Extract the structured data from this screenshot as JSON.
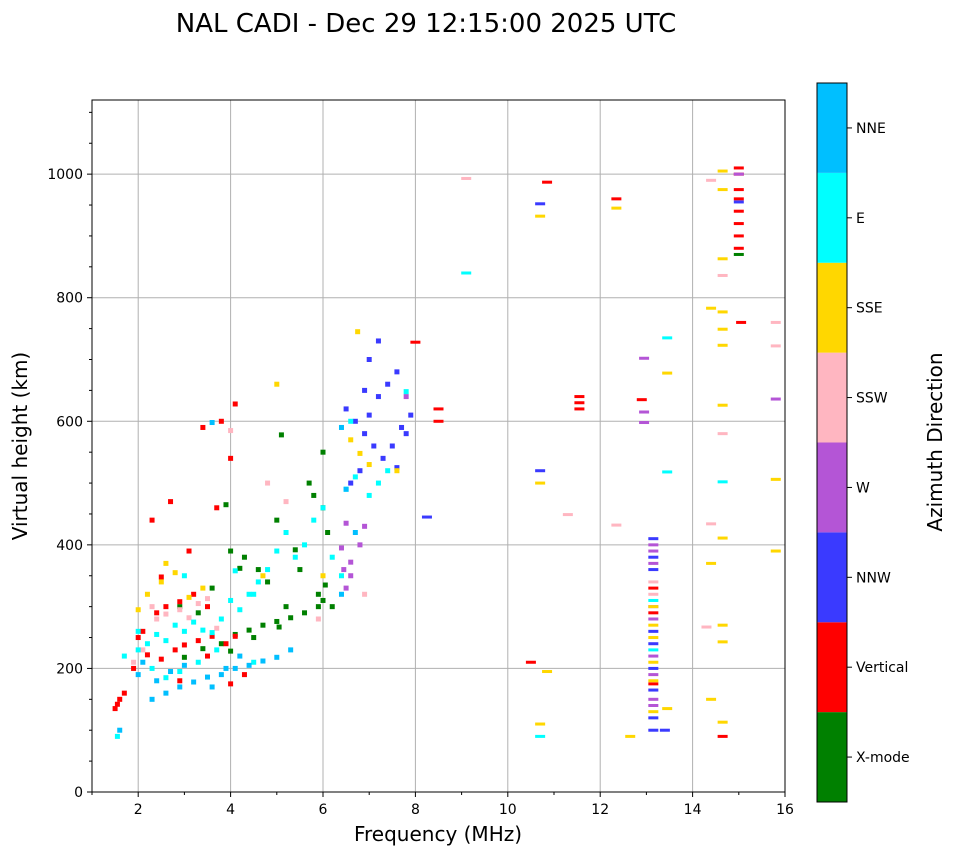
{
  "chart_data": {
    "type": "scatter",
    "title": "NAL CADI - Dec 29 12:15:00 2025 UTC",
    "xlabel": "Frequency (MHz)",
    "ylabel": "Virtual height (km)",
    "xlim": [
      1,
      16
    ],
    "ylim": [
      0,
      1120
    ],
    "xticks": [
      2,
      4,
      6,
      8,
      10,
      12,
      14,
      16
    ],
    "yticks": [
      0,
      200,
      400,
      600,
      800,
      1000
    ],
    "grid": true,
    "colorbar": {
      "label": "Azimuth Direction",
      "position": "right",
      "categories": [
        "X-mode",
        "Vertical",
        "NNW",
        "W",
        "SSW",
        "SSE",
        "E",
        "NNE"
      ],
      "colors": [
        "#008000",
        "#ff0000",
        "#3a3aff",
        "#b455d6",
        "#ffb6c1",
        "#ffd700",
        "#00ffff",
        "#00bfff"
      ]
    },
    "series": [
      {
        "name": "X-mode",
        "points": [
          [
            3.0,
            218
          ],
          [
            3.4,
            232
          ],
          [
            3.8,
            240
          ],
          [
            4.1,
            255
          ],
          [
            4.4,
            262
          ],
          [
            4.7,
            270
          ],
          [
            5.0,
            276
          ],
          [
            5.3,
            282
          ],
          [
            5.6,
            290
          ],
          [
            5.9,
            300
          ],
          [
            6.0,
            310
          ],
          [
            4.0,
            228
          ],
          [
            4.5,
            250
          ],
          [
            5.2,
            300
          ],
          [
            4.8,
            340
          ],
          [
            5.5,
            360
          ],
          [
            6.1,
            420
          ],
          [
            5.8,
            480
          ],
          [
            5.0,
            440
          ],
          [
            4.3,
            380
          ],
          [
            3.6,
            330
          ],
          [
            4.0,
            390
          ],
          [
            3.9,
            465
          ],
          [
            5.7,
            500
          ],
          [
            6.0,
            550
          ],
          [
            5.9,
            320
          ],
          [
            6.2,
            300
          ],
          [
            5.1,
            578
          ],
          [
            4.6,
            360
          ],
          [
            5.4,
            392
          ],
          [
            6.05,
            335
          ],
          [
            5.05,
            267
          ],
          [
            4.2,
            362
          ],
          [
            3.3,
            290
          ],
          [
            2.9,
            300
          ],
          [
            6.0,
            460
          ],
          [
            15.0,
            870
          ]
        ]
      },
      {
        "name": "Vertical",
        "points": [
          [
            1.5,
            135
          ],
          [
            1.55,
            142
          ],
          [
            1.6,
            150
          ],
          [
            1.7,
            160
          ],
          [
            1.9,
            200
          ],
          [
            2.2,
            222
          ],
          [
            2.5,
            215
          ],
          [
            2.8,
            230
          ],
          [
            3.0,
            238
          ],
          [
            3.3,
            245
          ],
          [
            3.6,
            252
          ],
          [
            3.9,
            240
          ],
          [
            4.1,
            252
          ],
          [
            2.6,
            300
          ],
          [
            2.9,
            308
          ],
          [
            3.2,
            320
          ],
          [
            3.5,
            300
          ],
          [
            2.3,
            440
          ],
          [
            2.1,
            260
          ],
          [
            2.4,
            290
          ],
          [
            3.8,
            600
          ],
          [
            4.1,
            628
          ],
          [
            3.4,
            590
          ],
          [
            2.7,
            470
          ],
          [
            3.1,
            390
          ],
          [
            3.7,
            460
          ],
          [
            4.0,
            540
          ],
          [
            4.3,
            190
          ],
          [
            4.0,
            175
          ],
          [
            2.0,
            250
          ],
          [
            2.9,
            180
          ],
          [
            2.5,
            348
          ],
          [
            3.5,
            220
          ],
          [
            8.5,
            600
          ],
          [
            8.5,
            620
          ],
          [
            10.5,
            210
          ],
          [
            10.85,
            987
          ],
          [
            11.55,
            620
          ],
          [
            11.55,
            630
          ],
          [
            11.55,
            640
          ],
          [
            12.35,
            960
          ],
          [
            12.9,
            635
          ],
          [
            13.15,
            330
          ],
          [
            13.15,
            290
          ],
          [
            13.15,
            175
          ],
          [
            14.65,
            90
          ],
          [
            15.0,
            1010
          ],
          [
            15.0,
            1000
          ],
          [
            15.0,
            975
          ],
          [
            15.0,
            960
          ],
          [
            15.0,
            940
          ],
          [
            15.0,
            920
          ],
          [
            15.0,
            900
          ],
          [
            15.0,
            880
          ],
          [
            15.05,
            760
          ],
          [
            8.0,
            728
          ]
        ]
      },
      {
        "name": "NNW",
        "points": [
          [
            6.5,
            620
          ],
          [
            6.7,
            600
          ],
          [
            6.9,
            580
          ],
          [
            7.1,
            560
          ],
          [
            7.3,
            540
          ],
          [
            7.5,
            560
          ],
          [
            7.7,
            590
          ],
          [
            7.9,
            610
          ],
          [
            6.6,
            500
          ],
          [
            6.8,
            520
          ],
          [
            7.0,
            610
          ],
          [
            7.2,
            640
          ],
          [
            7.4,
            660
          ],
          [
            7.6,
            680
          ],
          [
            7.0,
            700
          ],
          [
            7.2,
            730
          ],
          [
            6.9,
            650
          ],
          [
            8.25,
            445
          ],
          [
            10.7,
            520
          ],
          [
            10.7,
            952
          ],
          [
            13.15,
            410
          ],
          [
            13.15,
            380
          ],
          [
            13.15,
            360
          ],
          [
            13.15,
            260
          ],
          [
            13.15,
            240
          ],
          [
            13.15,
            200
          ],
          [
            13.15,
            165
          ],
          [
            13.15,
            120
          ],
          [
            13.15,
            100
          ],
          [
            13.4,
            100
          ],
          [
            15.0,
            955
          ],
          [
            7.6,
            525
          ],
          [
            7.8,
            580
          ]
        ]
      },
      {
        "name": "W",
        "points": [
          [
            6.5,
            435
          ],
          [
            6.4,
            395
          ],
          [
            6.6,
            372
          ],
          [
            6.8,
            400
          ],
          [
            6.9,
            430
          ],
          [
            6.6,
            350
          ],
          [
            6.5,
            330
          ],
          [
            7.8,
            640
          ],
          [
            12.95,
            702
          ],
          [
            12.95,
            615
          ],
          [
            12.95,
            598
          ],
          [
            13.15,
            400
          ],
          [
            13.15,
            390
          ],
          [
            13.15,
            370
          ],
          [
            13.15,
            300
          ],
          [
            13.15,
            280
          ],
          [
            13.15,
            220
          ],
          [
            13.15,
            190
          ],
          [
            13.15,
            150
          ],
          [
            13.15,
            140
          ],
          [
            15.8,
            636
          ],
          [
            15.0,
            1000
          ],
          [
            6.45,
            360
          ]
        ]
      },
      {
        "name": "SSW",
        "points": [
          [
            2.4,
            280
          ],
          [
            2.6,
            288
          ],
          [
            2.9,
            295
          ],
          [
            3.1,
            282
          ],
          [
            3.3,
            305
          ],
          [
            3.5,
            313
          ],
          [
            2.1,
            230
          ],
          [
            1.9,
            210
          ],
          [
            2.3,
            300
          ],
          [
            5.2,
            470
          ],
          [
            4.0,
            585
          ],
          [
            4.8,
            500
          ],
          [
            5.9,
            280
          ],
          [
            9.1,
            993
          ],
          [
            11.3,
            449
          ],
          [
            12.35,
            432
          ],
          [
            14.4,
            990
          ],
          [
            14.65,
            836
          ],
          [
            14.65,
            580
          ],
          [
            14.3,
            267
          ],
          [
            14.4,
            434
          ],
          [
            15.8,
            760
          ],
          [
            15.8,
            722
          ],
          [
            13.15,
            340
          ],
          [
            13.15,
            320
          ],
          [
            6.9,
            320
          ],
          [
            3.7,
            265
          ]
        ]
      },
      {
        "name": "SSE",
        "points": [
          [
            2.0,
            295
          ],
          [
            2.2,
            320
          ],
          [
            2.5,
            340
          ],
          [
            2.8,
            355
          ],
          [
            3.1,
            315
          ],
          [
            3.4,
            330
          ],
          [
            2.6,
            370
          ],
          [
            5.0,
            660
          ],
          [
            6.6,
            570
          ],
          [
            6.8,
            548
          ],
          [
            7.0,
            530
          ],
          [
            6.75,
            745
          ],
          [
            7.6,
            520
          ],
          [
            10.7,
            932
          ],
          [
            10.7,
            500
          ],
          [
            10.7,
            110
          ],
          [
            10.85,
            195
          ],
          [
            12.35,
            945
          ],
          [
            12.65,
            90
          ],
          [
            13.15,
            300
          ],
          [
            13.15,
            270
          ],
          [
            13.15,
            250
          ],
          [
            13.15,
            210
          ],
          [
            13.15,
            180
          ],
          [
            13.15,
            130
          ],
          [
            13.45,
            135
          ],
          [
            13.45,
            678
          ],
          [
            14.4,
            783
          ],
          [
            14.4,
            370
          ],
          [
            14.4,
            150
          ],
          [
            14.65,
            1005
          ],
          [
            14.65,
            975
          ],
          [
            14.65,
            863
          ],
          [
            14.65,
            777
          ],
          [
            14.65,
            749
          ],
          [
            14.65,
            723
          ],
          [
            14.65,
            626
          ],
          [
            14.65,
            411
          ],
          [
            14.65,
            270
          ],
          [
            14.65,
            243
          ],
          [
            14.65,
            113
          ],
          [
            15.8,
            506
          ],
          [
            15.8,
            390
          ],
          [
            6.0,
            350
          ],
          [
            4.7,
            350
          ]
        ]
      },
      {
        "name": "E",
        "points": [
          [
            1.55,
            90
          ],
          [
            1.7,
            220
          ],
          [
            2.0,
            260
          ],
          [
            2.2,
            240
          ],
          [
            2.4,
            255
          ],
          [
            2.6,
            245
          ],
          [
            2.8,
            270
          ],
          [
            3.0,
            260
          ],
          [
            3.2,
            275
          ],
          [
            3.4,
            262
          ],
          [
            3.6,
            258
          ],
          [
            3.8,
            280
          ],
          [
            4.0,
            310
          ],
          [
            4.2,
            295
          ],
          [
            4.4,
            320
          ],
          [
            4.6,
            340
          ],
          [
            4.8,
            360
          ],
          [
            5.0,
            390
          ],
          [
            5.2,
            420
          ],
          [
            5.4,
            380
          ],
          [
            5.6,
            400
          ],
          [
            5.8,
            440
          ],
          [
            6.0,
            460
          ],
          [
            6.2,
            380
          ],
          [
            6.4,
            350
          ],
          [
            6.5,
            490
          ],
          [
            6.7,
            510
          ],
          [
            7.0,
            480
          ],
          [
            7.2,
            500
          ],
          [
            7.4,
            520
          ],
          [
            2.3,
            200
          ],
          [
            2.6,
            185
          ],
          [
            2.9,
            195
          ],
          [
            3.3,
            210
          ],
          [
            3.7,
            230
          ],
          [
            4.1,
            358
          ],
          [
            4.5,
            320
          ],
          [
            9.1,
            840
          ],
          [
            10.7,
            90
          ],
          [
            13.15,
            310
          ],
          [
            13.15,
            230
          ],
          [
            13.45,
            735
          ],
          [
            13.45,
            518
          ],
          [
            14.65,
            502
          ],
          [
            2.0,
            230
          ],
          [
            3.0,
            350
          ],
          [
            4.5,
            210
          ],
          [
            7.8,
            648
          ],
          [
            6.6,
            600
          ]
        ]
      },
      {
        "name": "NNE",
        "points": [
          [
            2.3,
            150
          ],
          [
            2.6,
            160
          ],
          [
            2.9,
            170
          ],
          [
            3.2,
            178
          ],
          [
            3.5,
            186
          ],
          [
            3.8,
            190
          ],
          [
            4.1,
            200
          ],
          [
            4.4,
            205
          ],
          [
            4.7,
            212
          ],
          [
            5.0,
            218
          ],
          [
            5.3,
            230
          ],
          [
            2.0,
            190
          ],
          [
            2.1,
            210
          ],
          [
            2.4,
            180
          ],
          [
            2.7,
            195
          ],
          [
            3.0,
            205
          ],
          [
            3.6,
            170
          ],
          [
            3.9,
            200
          ],
          [
            4.2,
            220
          ],
          [
            6.4,
            590
          ],
          [
            6.5,
            490
          ],
          [
            6.4,
            320
          ],
          [
            6.7,
            420
          ],
          [
            3.6,
            598
          ],
          [
            1.6,
            100
          ]
        ]
      }
    ]
  }
}
